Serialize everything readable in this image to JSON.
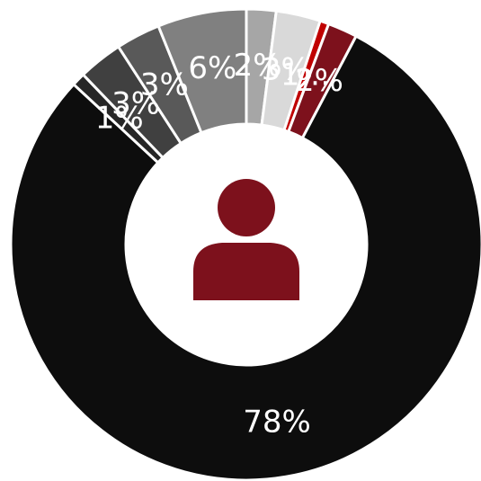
{
  "chart_data": {
    "type": "pie",
    "donut": true,
    "center_icon": "person-icon",
    "colors": {
      "background": "#ffffff",
      "separator": "#ffffff",
      "icon": "#7d111c"
    },
    "slices": [
      {
        "value": 2,
        "label": "2%",
        "color": "#a6a6a6"
      },
      {
        "value": 3,
        "label": "3%",
        "color": "#d9d9d9"
      },
      {
        "value": 0.6,
        "label": "1…",
        "color": "#c00000"
      },
      {
        "value": 2,
        "label": "2%",
        "color": "#7d111c"
      },
      {
        "value": 78,
        "label": "78%",
        "color": "#0d0d0d"
      },
      {
        "value": 0.9,
        "label": "1%",
        "color": "#262626"
      },
      {
        "value": 3,
        "label": "3%",
        "color": "#404040"
      },
      {
        "value": 3,
        "label": "3%",
        "color": "#595959"
      },
      {
        "value": 6,
        "label": "6%",
        "color": "#808080"
      }
    ]
  }
}
